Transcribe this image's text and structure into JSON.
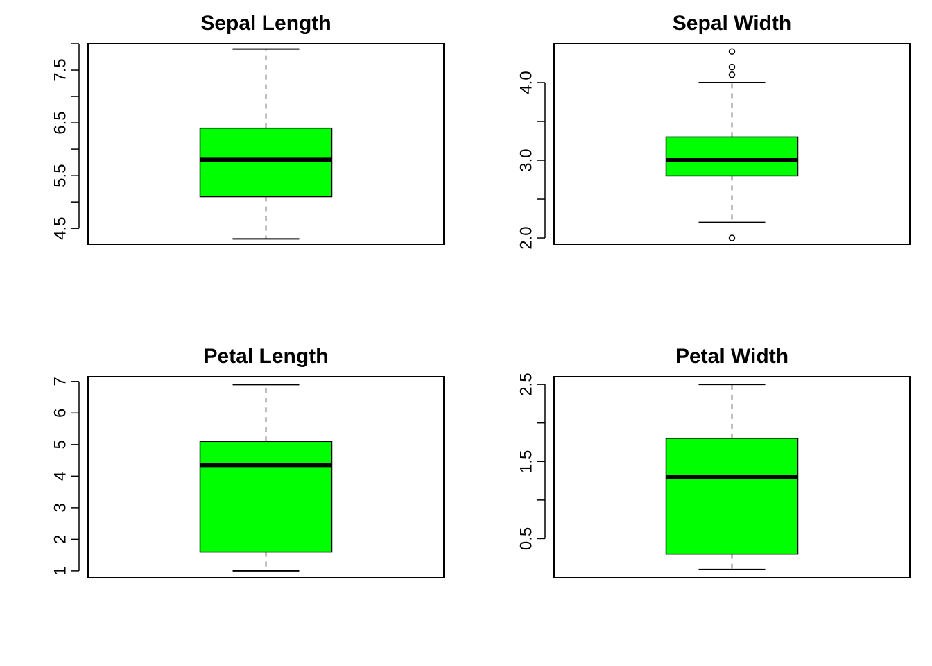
{
  "chart_data": [
    {
      "type": "boxplot",
      "title": "Sepal Length",
      "ylim": [
        4.2,
        8.0
      ],
      "yticks": [
        4.5,
        5.0,
        5.5,
        6.0,
        6.5,
        7.0,
        7.5,
        8.0
      ],
      "ytick_labels": [
        "4.5",
        "",
        "5.5",
        "",
        "6.5",
        "",
        "7.5",
        ""
      ],
      "box": {
        "min": 4.3,
        "q1": 5.1,
        "median": 5.8,
        "q3": 6.4,
        "max": 7.9
      },
      "outliers": [],
      "fill_color": "#00ff00"
    },
    {
      "type": "boxplot",
      "title": "Sepal Width",
      "ylim": [
        1.92,
        4.5
      ],
      "yticks": [
        2.0,
        2.5,
        3.0,
        3.5,
        4.0
      ],
      "ytick_labels": [
        "2.0",
        "",
        "3.0",
        "",
        "4.0"
      ],
      "box": {
        "min": 2.2,
        "q1": 2.8,
        "median": 3.0,
        "q3": 3.3,
        "max": 4.0
      },
      "outliers": [
        4.4,
        4.2,
        4.1,
        2.0
      ],
      "fill_color": "#00ff00"
    },
    {
      "type": "boxplot",
      "title": "Petal Length",
      "ylim": [
        0.8,
        7.15
      ],
      "yticks": [
        1,
        2,
        3,
        4,
        5,
        6,
        7
      ],
      "ytick_labels": [
        "1",
        "2",
        "3",
        "4",
        "5",
        "6",
        "7"
      ],
      "box": {
        "min": 1.0,
        "q1": 1.6,
        "median": 4.35,
        "q3": 5.1,
        "max": 6.9
      },
      "outliers": [],
      "fill_color": "#00ff00"
    },
    {
      "type": "boxplot",
      "title": "Petal Width",
      "ylim": [
        0.0,
        2.6
      ],
      "yticks": [
        0.5,
        1.0,
        1.5,
        2.0,
        2.5
      ],
      "ytick_labels": [
        "0.5",
        "",
        "1.5",
        "",
        "2.5"
      ],
      "box": {
        "min": 0.1,
        "q1": 0.3,
        "median": 1.3,
        "q3": 1.8,
        "max": 2.5
      },
      "outliers": [],
      "fill_color": "#00ff00"
    }
  ]
}
